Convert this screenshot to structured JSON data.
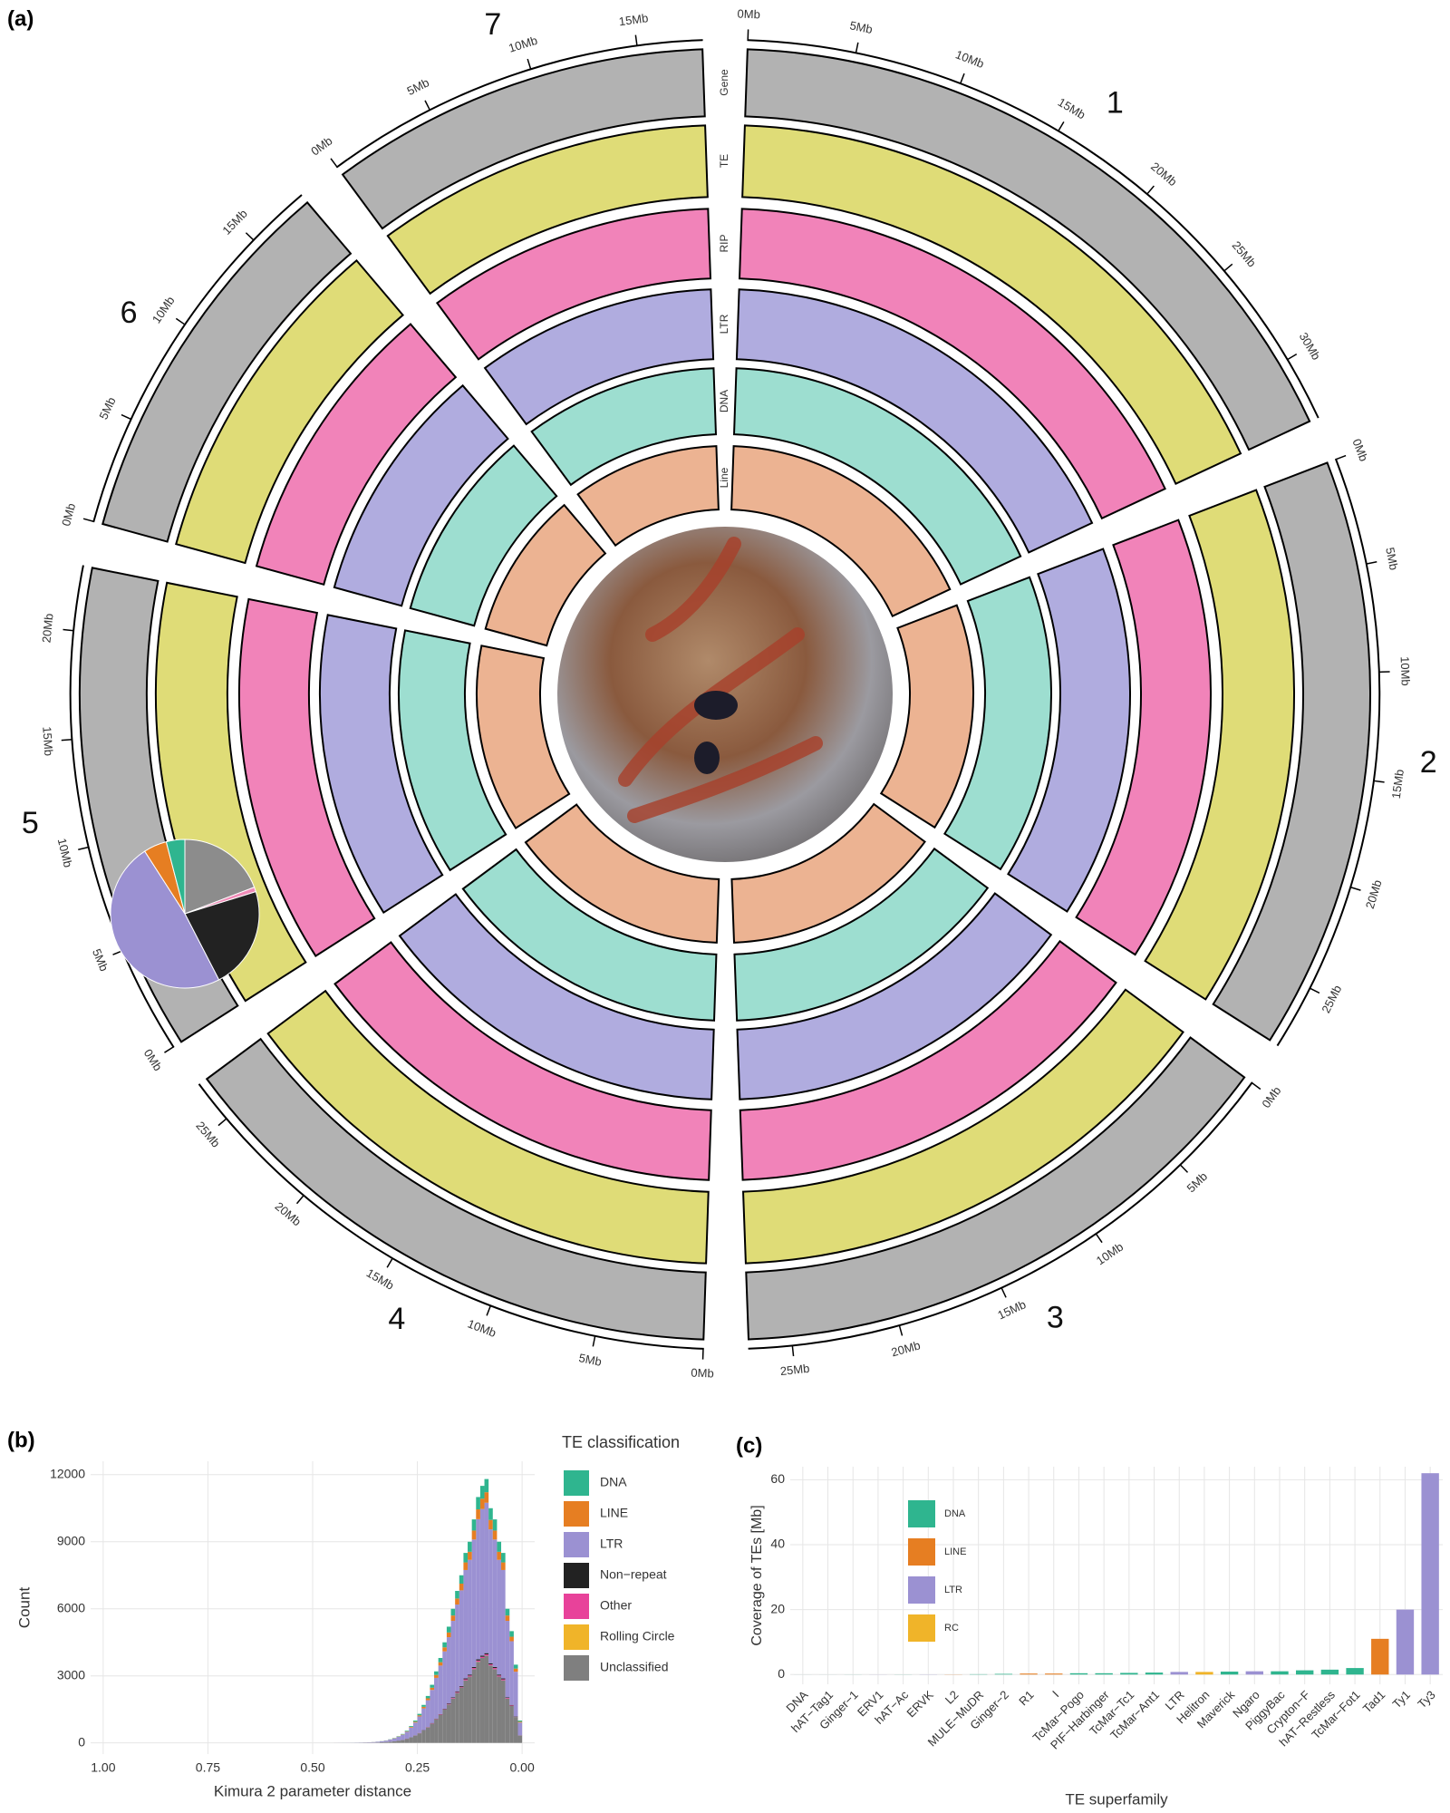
{
  "chart_data": [
    {
      "type": "circos",
      "panel": "(a)",
      "tracks": [
        {
          "name": "Gene",
          "color": "#222222"
        },
        {
          "name": "TE",
          "color": "#c9c41c"
        },
        {
          "name": "RIP",
          "color": "#e8318a"
        },
        {
          "name": "LTR",
          "color": "#7b74c9"
        },
        {
          "name": "DNA",
          "color": "#5cc8b0"
        },
        {
          "name": "Line",
          "color": "#e0804a"
        }
      ],
      "chromosomes": [
        {
          "name": "1",
          "length": 33,
          "ticks": [
            {
              "value": 0,
              "label": "0Mb"
            },
            {
              "value": 5,
              "label": "5Mb"
            },
            {
              "value": 10,
              "label": "10Mb"
            },
            {
              "value": 15,
              "label": "15Mb"
            },
            {
              "value": 20,
              "label": "20Mb"
            },
            {
              "value": 25,
              "label": "25Mb"
            },
            {
              "value": 30,
              "label": "30Mb"
            }
          ]
        },
        {
          "name": "2",
          "length": 28,
          "ticks": [
            {
              "value": 0,
              "label": "0Mb"
            },
            {
              "value": 5,
              "label": "5Mb"
            },
            {
              "value": 10,
              "label": "10Mb"
            },
            {
              "value": 15,
              "label": "15Mb"
            },
            {
              "value": 20,
              "label": "20Mb"
            },
            {
              "value": 25,
              "label": "25Mb"
            }
          ]
        },
        {
          "name": "3",
          "length": 27,
          "ticks": [
            {
              "value": 0,
              "label": "0Mb"
            },
            {
              "value": 5,
              "label": "5Mb"
            },
            {
              "value": 10,
              "label": "10Mb"
            },
            {
              "value": 15,
              "label": "15Mb"
            },
            {
              "value": 20,
              "label": "20Mb"
            },
            {
              "value": 25,
              "label": "25Mb"
            }
          ]
        },
        {
          "name": "4",
          "length": 27,
          "ticks": [
            {
              "value": 0,
              "label": "0Mb"
            },
            {
              "value": 5,
              "label": "5Mb"
            },
            {
              "value": 10,
              "label": "10Mb"
            },
            {
              "value": 15,
              "label": "15Mb"
            },
            {
              "value": 20,
              "label": "20Mb"
            },
            {
              "value": 25,
              "label": "25Mb"
            }
          ]
        },
        {
          "name": "5",
          "length": 23,
          "ticks": [
            {
              "value": 0,
              "label": "0Mb"
            },
            {
              "value": 5,
              "label": "5Mb"
            },
            {
              "value": 10,
              "label": "10Mb"
            },
            {
              "value": 15,
              "label": "15Mb"
            },
            {
              "value": 20,
              "label": "20Mb"
            }
          ]
        },
        {
          "name": "6",
          "length": 18,
          "ticks": [
            {
              "value": 0,
              "label": "0Mb"
            },
            {
              "value": 5,
              "label": "5Mb"
            },
            {
              "value": 10,
              "label": "10Mb"
            },
            {
              "value": 15,
              "label": "15Mb"
            }
          ]
        },
        {
          "name": "7",
          "length": 18,
          "ticks": [
            {
              "value": 0,
              "label": "0Mb"
            },
            {
              "value": 5,
              "label": "5Mb"
            },
            {
              "value": 10,
              "label": "10Mb"
            },
            {
              "value": 15,
              "label": "15Mb"
            }
          ]
        }
      ]
    },
    {
      "type": "histogram",
      "panel": "(b)",
      "x_label": "Kimura 2 parameter distance",
      "y_label": "Count",
      "legend_title": "TE classification",
      "xlim": [
        1.03,
        -0.03
      ],
      "xticks": [
        {
          "value": 1,
          "label": "1.00"
        },
        0.75,
        {
          "value": 0.5,
          "label": "0.50"
        },
        0.25,
        {
          "value": 0,
          "label": "0.00"
        }
      ],
      "ylim": [
        -500,
        12600
      ],
      "yticks": [
        0,
        3000,
        6000,
        9000,
        12000
      ],
      "grid": true,
      "bins": [
        0,
        0.01,
        0.02,
        0.03,
        0.04,
        0.05,
        0.06,
        0.07,
        0.08,
        0.09,
        0.1,
        0.11,
        0.12,
        0.13,
        0.14,
        0.15,
        0.16,
        0.17,
        0.18,
        0.19,
        0.2,
        0.21,
        0.22,
        0.23,
        0.24,
        0.25,
        0.26,
        0.27,
        0.28,
        0.29,
        0.3,
        0.31,
        0.32,
        0.33,
        0.34,
        0.35,
        0.36,
        0.37,
        0.38,
        0.39,
        0.4,
        0.41,
        0.42,
        0.43,
        0.44,
        0.45
      ],
      "series": [
        {
          "name": "DNA",
          "color": "#2fb58f",
          "values": [
            50,
            175,
            250,
            300,
            425,
            450,
            500,
            525,
            590,
            575,
            550,
            500,
            450,
            425,
            375,
            340,
            300,
            260,
            225,
            190,
            160,
            130,
            105,
            85,
            65,
            50,
            38,
            28,
            20,
            15,
            11,
            8,
            6,
            4,
            3,
            2,
            1,
            1,
            1,
            1,
            1,
            0,
            1,
            0,
            0
          ]
        },
        {
          "name": "LINE",
          "color": "#e67e22",
          "values": [
            40,
            140,
            200,
            240,
            340,
            360,
            400,
            420,
            470,
            460,
            440,
            400,
            360,
            340,
            300,
            270,
            240,
            210,
            180,
            150,
            130,
            100,
            85,
            70,
            50,
            40,
            30,
            22,
            16,
            12,
            9,
            6,
            4,
            3,
            2,
            2,
            1,
            1,
            0,
            0,
            0,
            0,
            0,
            0,
            0
          ]
        },
        {
          "name": "LTR",
          "color": "#9b91d2",
          "values": [
            570,
            2000,
            2850,
            3420,
            4850,
            5130,
            5700,
            5990,
            6730,
            6560,
            6270,
            5700,
            5130,
            4850,
            4280,
            3880,
            3420,
            2960,
            2570,
            2170,
            1820,
            1480,
            1200,
            970,
            740,
            570,
            430,
            310,
            230,
            170,
            125,
            91,
            63,
            46,
            31,
            23,
            16,
            11,
            8,
            6,
            4,
            3,
            2,
            2,
            1
          ]
        },
        {
          "name": "Non−repeat",
          "color": "#222222",
          "values": [
            5,
            15,
            25,
            30,
            40,
            45,
            50,
            50,
            55,
            55,
            55,
            50,
            45,
            40,
            35,
            35,
            30,
            25,
            20,
            20,
            15,
            15,
            10,
            10,
            5,
            5,
            5,
            5,
            2,
            2,
            1,
            1,
            1,
            1,
            0,
            0,
            0,
            0,
            0,
            0,
            0,
            0,
            0,
            0,
            0
          ]
        },
        {
          "name": "Other",
          "color": "#e8429a",
          "values": [
            5,
            10,
            25,
            30,
            45,
            45,
            50,
            45,
            55,
            50,
            50,
            50,
            45,
            45,
            30,
            35,
            30,
            25,
            15,
            20,
            15,
            15,
            10,
            5,
            10,
            5,
            0,
            5,
            2,
            1,
            1,
            1,
            0,
            0,
            1,
            0,
            1,
            0,
            0,
            0,
            0,
            0,
            0,
            0,
            0
          ]
        },
        {
          "name": "Rolling Circle",
          "color": "#f0b429",
          "values": [
            0,
            0,
            0,
            0,
            0,
            0,
            0,
            0,
            5,
            0,
            5,
            0,
            0,
            0,
            0,
            0,
            0,
            0,
            0,
            0,
            0,
            0,
            0,
            0,
            0,
            0,
            0,
            0,
            0,
            0,
            0,
            0,
            0,
            0,
            0,
            0,
            0,
            0,
            0,
            0,
            0,
            0,
            0,
            0,
            0
          ]
        },
        {
          "name": "Unclassified",
          "color": "#7f7f7f",
          "values": [
            330,
            1160,
            1650,
            1980,
            2800,
            2970,
            3300,
            3470,
            3900,
            3800,
            3630,
            3300,
            2970,
            2800,
            2480,
            2240,
            1980,
            1720,
            1490,
            1250,
            1060,
            860,
            690,
            560,
            430,
            330,
            250,
            180,
            130,
            100,
            73,
            53,
            36,
            26,
            18,
            13,
            9,
            7,
            5,
            3,
            2,
            2,
            1,
            1,
            1
          ]
        }
      ]
    },
    {
      "type": "pie",
      "values": [
        19,
        1,
        22,
        48,
        5,
        4
      ],
      "colors": [
        "#8c8c8c",
        "#f08cb8",
        "#222222",
        "#9b91d2",
        "#e67e22",
        "#2fb58f"
      ]
    },
    {
      "type": "bar",
      "panel": "(c)",
      "x_label": "TE superfamily",
      "y_label": "Coverage of TEs [Mb]",
      "categories": [
        "DNA",
        "hAT−Tag1",
        "Ginger−1",
        "ERV1",
        "hAT−Ac",
        "ERVK",
        "L2",
        "MULE−MuDR",
        "Ginger−2",
        "R1",
        "I",
        "TcMar−Pogo",
        "PIF−Harbinger",
        "TcMar−Tc1",
        "TcMar−Ant1",
        "LTR",
        "Helitron",
        "Maverick",
        "Ngaro",
        "PiggyBac",
        "Crypton−F",
        "hAT−Restless",
        "TcMar−Fot1",
        "Tad1",
        "Ty1",
        "Ty3"
      ],
      "values": [
        0.01,
        0.01,
        0.02,
        0.03,
        0.03,
        0.05,
        0.05,
        0.1,
        0.2,
        0.3,
        0.3,
        0.4,
        0.4,
        0.5,
        0.6,
        0.8,
        0.8,
        0.9,
        1,
        1,
        1.3,
        1.5,
        2,
        11,
        20,
        62
      ],
      "colors": [
        "#2fb58f",
        "#2fb58f",
        "#2fb58f",
        "#9b91d2",
        "#2fb58f",
        "#9b91d2",
        "#e67e22",
        "#2fb58f",
        "#2fb58f",
        "#e67e22",
        "#e67e22",
        "#2fb58f",
        "#2fb58f",
        "#2fb58f",
        "#2fb58f",
        "#9b91d2",
        "#f0b429",
        "#2fb58f",
        "#9b91d2",
        "#2fb58f",
        "#2fb58f",
        "#2fb58f",
        "#2fb58f",
        "#e67e22",
        "#9b91d2",
        "#9b91d2"
      ],
      "legend": [
        {
          "name": "DNA",
          "color": "#2fb58f"
        },
        {
          "name": "LINE",
          "color": "#e67e22"
        },
        {
          "name": "LTR",
          "color": "#9b91d2"
        },
        {
          "name": "RC",
          "color": "#f0b429"
        }
      ],
      "ylim": [
        -3,
        64
      ],
      "yticks": [
        0,
        20,
        40,
        60
      ],
      "grid": true
    }
  ]
}
